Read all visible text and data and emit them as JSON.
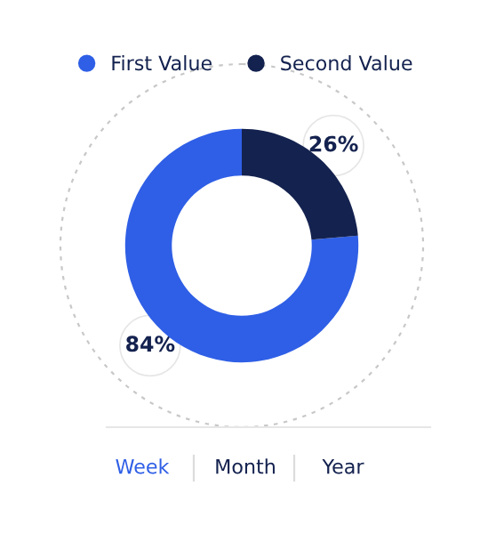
{
  "chart_data": {
    "type": "donut",
    "categories": [
      "First Value",
      "Second Value"
    ],
    "values": [
      84,
      26
    ],
    "colors": [
      "#2f5fe6",
      "#14224f"
    ],
    "value_labels": [
      "84%",
      "26%"
    ],
    "legend": "top",
    "annotations": [
      "Week",
      "Month",
      "Year"
    ]
  }
}
